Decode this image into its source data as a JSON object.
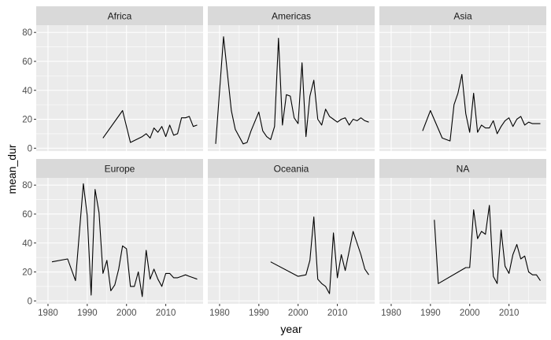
{
  "chart_data": {
    "type": "line",
    "xlabel": "year",
    "ylabel": "mean_dur",
    "xlim": [
      1977,
      2019.5
    ],
    "ylim": [
      -2,
      85
    ],
    "x_ticks": [
      1980,
      1990,
      2000,
      2010
    ],
    "y_ticks": [
      0,
      20,
      40,
      60,
      80
    ],
    "grid": true,
    "facets": [
      {
        "name": "Africa",
        "x": [
          1994,
          1999,
          2001,
          2004,
          2005,
          2006,
          2007,
          2008,
          2009,
          2010,
          2011,
          2012,
          2013,
          2014,
          2015,
          2016,
          2017,
          2018
        ],
        "y": [
          7,
          26,
          4,
          8,
          10,
          7,
          14,
          11,
          15,
          8,
          16,
          9,
          10,
          21,
          21,
          22,
          15,
          16
        ]
      },
      {
        "name": "Americas",
        "x": [
          1979,
          1981,
          1983,
          1984,
          1986,
          1987,
          1988,
          1990,
          1991,
          1992,
          1993,
          1994,
          1995,
          1996,
          1997,
          1998,
          1999,
          2000,
          2001,
          2002,
          2003,
          2004,
          2005,
          2006,
          2007,
          2008,
          2009,
          2010,
          2011,
          2012,
          2013,
          2014,
          2015,
          2016,
          2017,
          2018
        ],
        "y": [
          3,
          77,
          26,
          13,
          3,
          4,
          12,
          25,
          12,
          8,
          6,
          15,
          76,
          16,
          37,
          36,
          21,
          17,
          59,
          8,
          36,
          47,
          20,
          16,
          27,
          22,
          20,
          18,
          20,
          21,
          16,
          20,
          19,
          21,
          19,
          18
        ]
      },
      {
        "name": "Asia",
        "x": [
          1988,
          1990,
          1993,
          1995,
          1996,
          1997,
          1998,
          1999,
          2000,
          2001,
          2002,
          2003,
          2004,
          2005,
          2006,
          2007,
          2008,
          2009,
          2010,
          2011,
          2012,
          2013,
          2014,
          2015,
          2016,
          2017,
          2018
        ],
        "y": [
          12,
          26,
          7,
          5,
          30,
          38,
          51,
          24,
          11,
          38,
          11,
          16,
          14,
          14,
          19,
          10,
          15,
          19,
          21,
          15,
          20,
          22,
          16,
          18,
          17,
          17,
          17
        ]
      },
      {
        "name": "Europe",
        "x": [
          1981,
          1985,
          1987,
          1989,
          1990,
          1991,
          1992,
          1993,
          1994,
          1995,
          1996,
          1997,
          1998,
          1999,
          2000,
          2001,
          2002,
          2003,
          2004,
          2005,
          2006,
          2007,
          2008,
          2009,
          2010,
          2011,
          2012,
          2013,
          2014,
          2015,
          2016,
          2017,
          2018
        ],
        "y": [
          27,
          29,
          14,
          81,
          59,
          4,
          77,
          61,
          19,
          28,
          7,
          11,
          22,
          38,
          36,
          10,
          10,
          20,
          3,
          35,
          15,
          22,
          15,
          10,
          19,
          19,
          16,
          16,
          17,
          18,
          17,
          16,
          15
        ]
      },
      {
        "name": "Oceania",
        "x": [
          1993,
          2000,
          2002,
          2003,
          2004,
          2005,
          2006,
          2007,
          2008,
          2009,
          2010,
          2011,
          2012,
          2014,
          2016,
          2017,
          2018
        ],
        "y": [
          27,
          17,
          18,
          28,
          58,
          15,
          12,
          10,
          5,
          47,
          16,
          32,
          21,
          48,
          32,
          22,
          18
        ]
      },
      {
        "name": "NA",
        "x": [
          1991,
          1992,
          1999,
          2000,
          2001,
          2002,
          2003,
          2004,
          2005,
          2006,
          2007,
          2008,
          2009,
          2010,
          2011,
          2012,
          2013,
          2014,
          2015,
          2016,
          2017,
          2018
        ],
        "y": [
          56,
          12,
          23,
          23,
          63,
          43,
          48,
          46,
          66,
          17,
          12,
          49,
          24,
          19,
          32,
          39,
          29,
          31,
          20,
          18,
          18,
          14
        ]
      }
    ]
  }
}
